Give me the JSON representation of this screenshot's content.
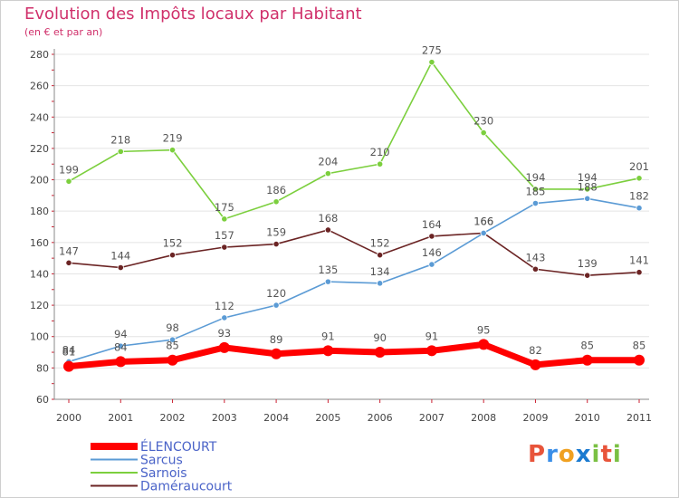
{
  "chart_data": {
    "type": "line",
    "title": "Evolution des Impôts locaux par Habitant",
    "subtitle": "(en € et par an)",
    "xlabel": "",
    "ylabel": "",
    "ylim": [
      60,
      280
    ],
    "ytick_step": 20,
    "yticks": [
      "60",
      "80",
      "100",
      "120",
      "140",
      "160",
      "180",
      "200",
      "220",
      "240",
      "260",
      "280"
    ],
    "categories": [
      "2000",
      "2001",
      "2002",
      "2003",
      "2004",
      "2005",
      "2006",
      "2007",
      "2008",
      "2009",
      "2010",
      "2011"
    ],
    "legend_placement": "bottom-left",
    "series": [
      {
        "name": "Sarnois",
        "color": "#7ccf3e",
        "values": [
          199,
          218,
          219,
          175,
          186,
          204,
          210,
          275,
          230,
          194,
          194,
          201
        ]
      },
      {
        "name": "Daméraucourt",
        "color": "#6b2424",
        "values": [
          147,
          144,
          152,
          157,
          159,
          168,
          152,
          164,
          166,
          143,
          139,
          141
        ]
      },
      {
        "name": "Sarcus",
        "color": "#5b9bd5",
        "values": [
          84,
          94,
          98,
          112,
          120,
          135,
          134,
          146,
          166,
          185,
          188,
          182
        ]
      },
      {
        "name": "ÉLENCOURT",
        "color": "#ff0000",
        "values": [
          81,
          84,
          85,
          93,
          89,
          91,
          90,
          91,
          95,
          82,
          85,
          85
        ]
      }
    ],
    "legend": [
      "ÉLENCOURT",
      "Sarcus",
      "Sarnois",
      "Daméraucourt"
    ]
  },
  "logo": {
    "letters": [
      "P",
      "r",
      "o",
      "x",
      "i",
      "t",
      "i"
    ],
    "colors": [
      "#e8543a",
      "#3a8ee8",
      "#f0a020",
      "#1a7ad0",
      "#7ac043",
      "#e8543a",
      "#7ac043"
    ]
  }
}
